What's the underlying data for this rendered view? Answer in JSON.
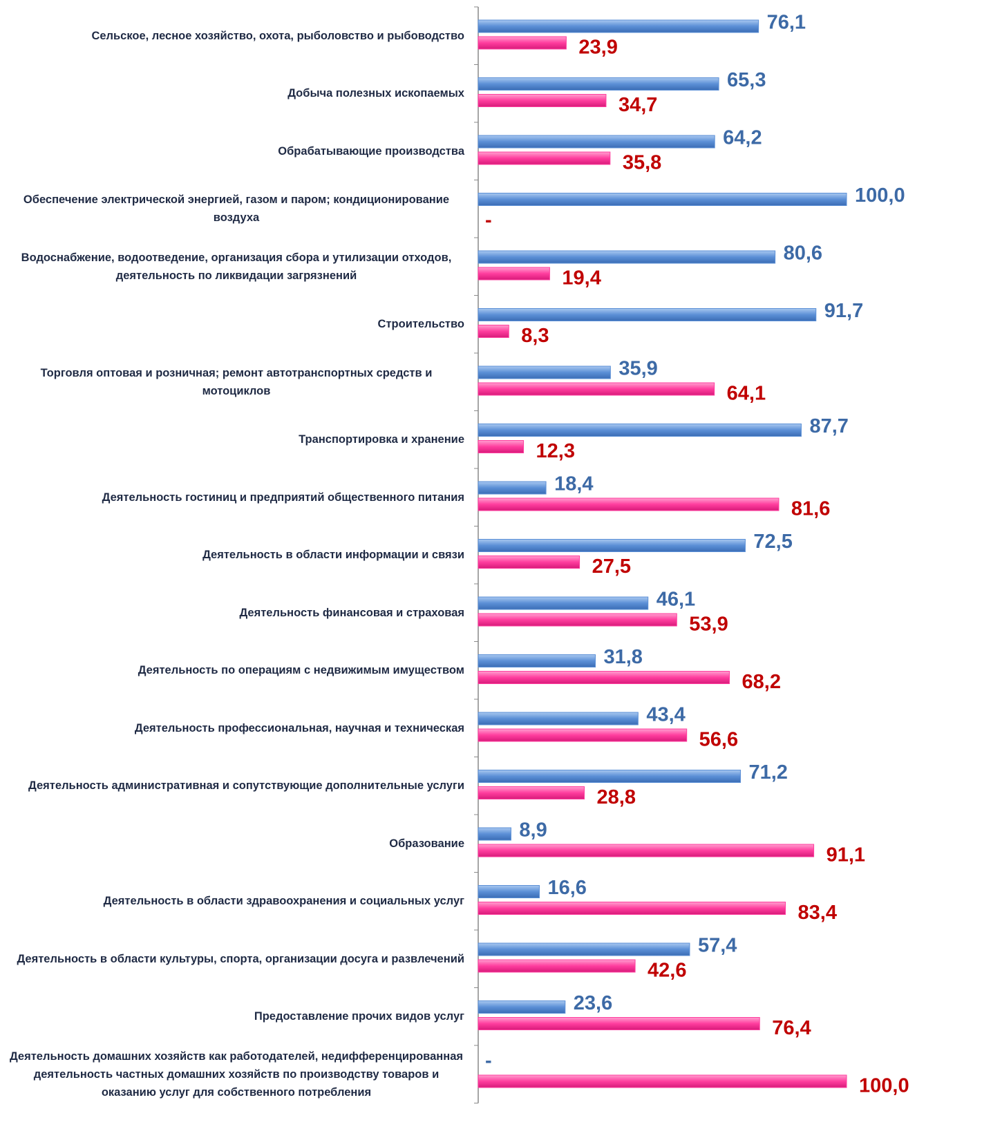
{
  "chart_data": {
    "type": "bar",
    "orientation": "horizontal",
    "categories": [
      "Сельское, лесное хозяйство, охота, рыболовство и рыбоводство",
      "Добыча полезных ископаемых",
      "Обрабатывающие производства",
      "Обеспечение электрической энергией, газом и паром; кондиционирование воздуха",
      "Водоснабжение, водоотведение, организация сбора и утилизации отходов, деятельность по ликвидации загрязнений",
      "Строительство",
      "Торговля оптовая и розничная; ремонт автотранспортных средств и мотоциклов",
      "Транспортировка и хранение",
      "Деятельность гостиниц и предприятий общественного питания",
      "Деятельность в области информации и связи",
      "Деятельность финансовая и страховая",
      "Деятельность по операциям с недвижимым имуществом",
      "Деятельность профессиональная, научная и техническая",
      "Деятельность административная и сопутствующие дополнительные услуги",
      "Образование",
      "Деятельность в области здравоохранения и социальных услуг",
      "Деятельность в области культуры, спорта, организации досуга и развлечений",
      "Предоставление прочих видов услуг",
      "Деятельность домашних хозяйств как работодателей, недифференцированная деятельность частных домашних хозяйств по производству товаров и оказанию услуг для собственного потребления"
    ],
    "series": [
      {
        "color": "#5b8fd6",
        "label_color": "#3d6aa6",
        "values": [
          76.1,
          65.3,
          64.2,
          100.0,
          80.6,
          91.7,
          35.9,
          87.7,
          18.4,
          72.5,
          46.1,
          31.8,
          43.4,
          71.2,
          8.9,
          16.6,
          57.4,
          23.6,
          null
        ],
        "value_labels": [
          "76,1",
          "65,3",
          "64,2",
          "100,0",
          "80,6",
          "91,7",
          "35,9",
          "87,7",
          "18,4",
          "72,5",
          "46,1",
          "31,8",
          "43,4",
          "71,2",
          "8,9",
          "16,6",
          "57,4",
          "23,6",
          "-"
        ]
      },
      {
        "color": "#ff3d9e",
        "label_color": "#c00000",
        "values": [
          23.9,
          34.7,
          35.8,
          null,
          19.4,
          8.3,
          64.1,
          12.3,
          81.6,
          27.5,
          53.9,
          68.2,
          56.6,
          28.8,
          91.1,
          83.4,
          42.6,
          76.4,
          100.0
        ],
        "value_labels": [
          "23,9",
          "34,7",
          "35,8",
          "-",
          "19,4",
          "8,3",
          "64,1",
          "12,3",
          "81,6",
          "27,5",
          "53,9",
          "68,2",
          "56,6",
          "28,8",
          "91,1",
          "83,4",
          "42,6",
          "76,4",
          "100,0"
        ]
      }
    ],
    "xlim": [
      0,
      100
    ]
  }
}
